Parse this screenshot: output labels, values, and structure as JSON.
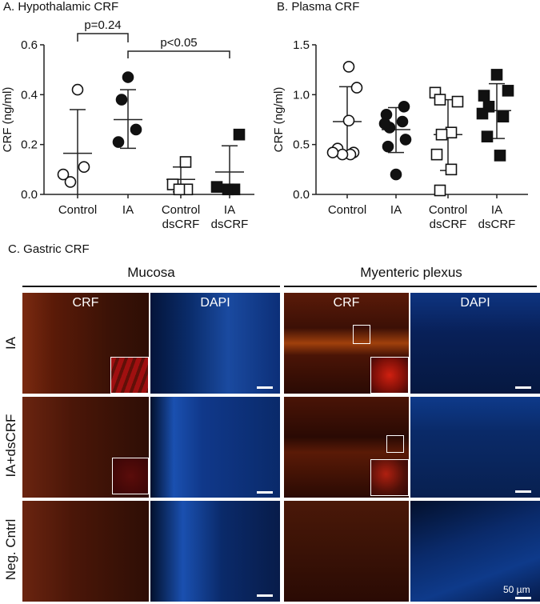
{
  "panels": {
    "a_title": "A. Hypothalamic CRF",
    "b_title": "B. Plasma CRF",
    "c_title": "C.  Gastric CRF"
  },
  "chart_data": [
    {
      "type": "scatter",
      "title": "A. Hypothalamic CRF",
      "ylabel": "CRF (ng/ml)",
      "ylim": [
        0,
        0.6
      ],
      "yticks": [
        "0.0",
        "0.2",
        "0.4",
        "0.6"
      ],
      "categories": [
        "Control",
        "IA",
        "Control\ndsCRF",
        "IA\ndsCRF"
      ],
      "series": [
        {
          "name": "Control",
          "marker": "open-circle",
          "values": [
            0.42,
            0.05,
            0.08,
            0.11
          ],
          "mean": 0.165,
          "sd_upper": 0.34,
          "sd_lower": -0.01
        },
        {
          "name": "IA",
          "marker": "filled-circle",
          "values": [
            0.47,
            0.38,
            0.26,
            0.21
          ],
          "mean": 0.3,
          "sd_upper": 0.42,
          "sd_lower": 0.185
        },
        {
          "name": "Control dsCRF",
          "marker": "open-square",
          "values": [
            0.13,
            0.04,
            0.02,
            0.02
          ],
          "mean": 0.06,
          "sd_upper": 0.11,
          "sd_lower": 0.01
        },
        {
          "name": "IA dsCRF",
          "marker": "filled-square",
          "values": [
            0.24,
            0.03,
            0.02,
            0.02
          ],
          "mean": 0.09,
          "sd_upper": 0.195,
          "sd_lower": -0.01
        }
      ],
      "annotations": [
        {
          "text": "p=0.24",
          "from": 0,
          "to": 1
        },
        {
          "text": "p<0.05",
          "from": 1,
          "to": 3
        }
      ]
    },
    {
      "type": "scatter",
      "title": "B. Plasma CRF",
      "ylabel": "CRF (ng/ml)",
      "ylim": [
        0,
        1.5
      ],
      "yticks": [
        "0.0",
        "0.5",
        "1.0",
        "1.5"
      ],
      "categories": [
        "Control",
        "IA",
        "Control\ndsCRF",
        "IA\ndsCRF"
      ],
      "series": [
        {
          "name": "Control",
          "marker": "open-circle",
          "values": [
            1.28,
            1.07,
            0.74,
            0.46,
            0.42,
            0.4,
            0.4,
            0.42
          ],
          "mean": 0.73,
          "sd_upper": 1.08,
          "sd_lower": 0.4
        },
        {
          "name": "IA",
          "marker": "filled-circle",
          "values": [
            0.88,
            0.8,
            0.73,
            0.67,
            0.55,
            0.48,
            0.2,
            0.71
          ],
          "mean": 0.65,
          "sd_upper": 0.87,
          "sd_lower": 0.42
        },
        {
          "name": "Control dsCRF",
          "marker": "open-square",
          "values": [
            1.02,
            0.95,
            0.93,
            0.62,
            0.6,
            0.4,
            0.25,
            0.04
          ],
          "mean": 0.6,
          "sd_upper": 0.95,
          "sd_lower": 0.24
        },
        {
          "name": "IA dsCRF",
          "marker": "filled-square",
          "values": [
            1.2,
            1.04,
            0.99,
            0.88,
            0.78,
            0.58,
            0.39,
            0.81
          ],
          "mean": 0.84,
          "sd_upper": 1.11,
          "sd_lower": 0.56
        }
      ]
    }
  ],
  "micrographs": {
    "groups": [
      "Mucosa",
      "Myenteric plexus"
    ],
    "stain_labels": [
      "CRF",
      "DAPI",
      "CRF",
      "DAPI"
    ],
    "rows": [
      "IA",
      "IA+dsCRF",
      "Neg. Cntrl"
    ],
    "scale_label": "50 µm",
    "colors": {
      "crf": "#6a1a08",
      "dapi": "#0a2f70"
    }
  }
}
